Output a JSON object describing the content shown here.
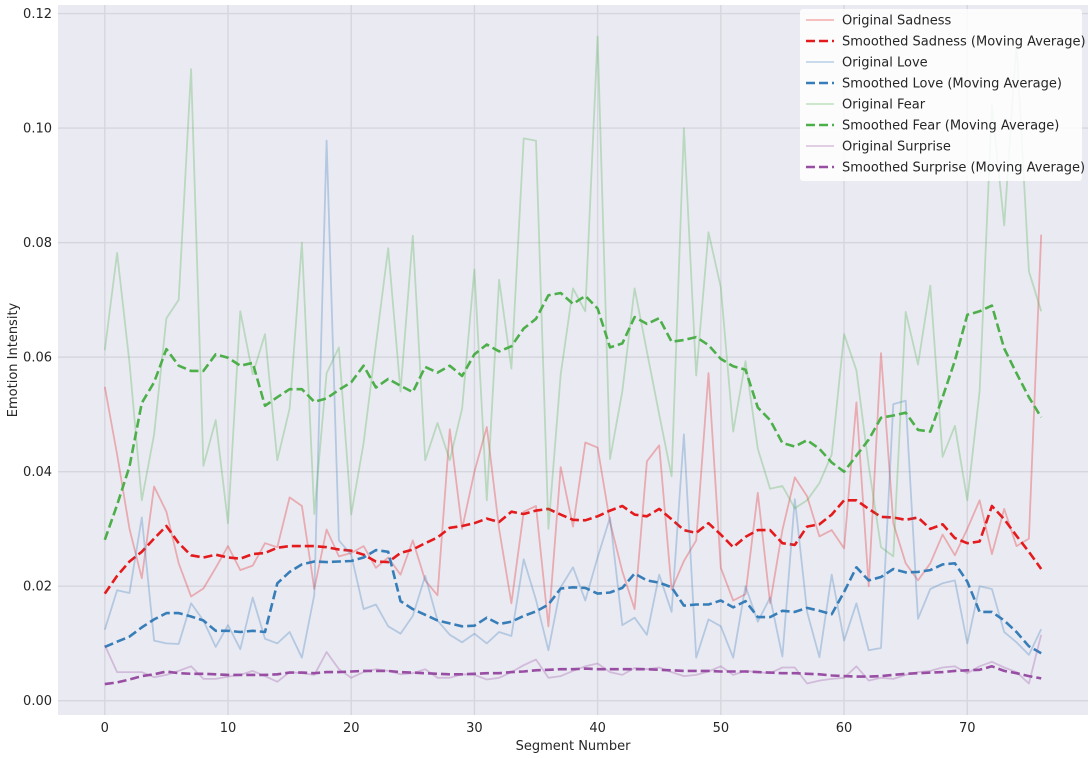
{
  "chart_data": {
    "type": "line",
    "xlabel": "Segment Number",
    "ylabel": "Emotion Intensity",
    "xlim": [
      -3.8,
      79.8
    ],
    "ylim": [
      -0.0025,
      0.1215
    ],
    "xticks": [
      0,
      10,
      20,
      30,
      40,
      50,
      60,
      70
    ],
    "yticks": [
      0.0,
      0.02,
      0.04,
      0.06,
      0.08,
      0.1,
      0.12
    ],
    "ytick_labels": [
      "0.00",
      "0.02",
      "0.04",
      "0.06",
      "0.08",
      "0.10",
      "0.12"
    ],
    "grid": true,
    "legend_position": "top-right",
    "x": [
      0,
      1,
      2,
      3,
      4,
      5,
      6,
      7,
      8,
      9,
      10,
      11,
      12,
      13,
      14,
      15,
      16,
      17,
      18,
      19,
      20,
      21,
      22,
      23,
      24,
      25,
      26,
      27,
      28,
      29,
      30,
      31,
      32,
      33,
      34,
      35,
      36,
      37,
      38,
      39,
      40,
      41,
      42,
      43,
      44,
      45,
      46,
      47,
      48,
      49,
      50,
      51,
      52,
      53,
      54,
      55,
      56,
      57,
      58,
      59,
      60,
      61,
      62,
      63,
      64,
      65,
      66,
      67,
      68,
      69,
      70,
      71,
      72,
      73,
      74,
      75,
      76
    ],
    "series": [
      {
        "name": "Original Sadness",
        "color": "#e41a1c",
        "style": "solid",
        "opacity": 0.3,
        "values": [
          0.0548,
          0.043,
          0.03,
          0.0214,
          0.0374,
          0.033,
          0.024,
          0.0182,
          0.0196,
          0.0232,
          0.027,
          0.0228,
          0.0236,
          0.0275,
          0.0268,
          0.0355,
          0.034,
          0.0195,
          0.0299,
          0.0252,
          0.0258,
          0.027,
          0.0232,
          0.025,
          0.022,
          0.028,
          0.021,
          0.0184,
          0.0474,
          0.03,
          0.04,
          0.0478,
          0.03,
          0.017,
          0.033,
          0.034,
          0.013,
          0.0408,
          0.0304,
          0.0451,
          0.0442,
          0.0312,
          0.0226,
          0.016,
          0.0418,
          0.0446,
          0.0194,
          0.0244,
          0.028,
          0.0572,
          0.0232,
          0.0175,
          0.0186,
          0.0363,
          0.017,
          0.0298,
          0.039,
          0.0357,
          0.0287,
          0.0298,
          0.0266,
          0.0521,
          0.02,
          0.0607,
          0.031,
          0.024,
          0.021,
          0.024,
          0.029,
          0.0254,
          0.03,
          0.035,
          0.0256,
          0.0335,
          0.027,
          0.0283,
          0.0814
        ]
      },
      {
        "name": "Smoothed Sadness (Moving Average)",
        "color": "#e41a1c",
        "style": "dashed",
        "opacity": 1,
        "values": [
          0.0187,
          0.0218,
          0.0243,
          0.026,
          0.0283,
          0.0305,
          0.0275,
          0.0254,
          0.025,
          0.0255,
          0.025,
          0.0248,
          0.0256,
          0.0258,
          0.0267,
          0.027,
          0.027,
          0.027,
          0.0268,
          0.0264,
          0.0262,
          0.0255,
          0.0243,
          0.0242,
          0.0258,
          0.0264,
          0.0275,
          0.0285,
          0.0302,
          0.0305,
          0.031,
          0.0318,
          0.0312,
          0.033,
          0.0326,
          0.0332,
          0.0335,
          0.0325,
          0.0316,
          0.0315,
          0.0322,
          0.0332,
          0.034,
          0.0325,
          0.0322,
          0.0335,
          0.0317,
          0.0298,
          0.0293,
          0.031,
          0.029,
          0.0268,
          0.0286,
          0.0298,
          0.0298,
          0.0275,
          0.0272,
          0.0304,
          0.0308,
          0.0325,
          0.035,
          0.035,
          0.0335,
          0.0321,
          0.032,
          0.0316,
          0.032,
          0.03,
          0.0308,
          0.0284,
          0.0275,
          0.0278,
          0.034,
          0.0317,
          0.0288,
          0.026,
          0.023
        ]
      },
      {
        "name": "Original Love",
        "color": "#377eb8",
        "style": "solid",
        "opacity": 0.3,
        "values": [
          0.0124,
          0.0193,
          0.0188,
          0.032,
          0.0105,
          0.01,
          0.0099,
          0.017,
          0.014,
          0.0094,
          0.0132,
          0.009,
          0.018,
          0.0108,
          0.01,
          0.012,
          0.0075,
          0.0185,
          0.0978,
          0.028,
          0.0255,
          0.016,
          0.0168,
          0.013,
          0.0117,
          0.0148,
          0.0218,
          0.014,
          0.0115,
          0.0102,
          0.0117,
          0.01,
          0.012,
          0.0113,
          0.0247,
          0.0176,
          0.0088,
          0.0198,
          0.0233,
          0.0175,
          0.025,
          0.032,
          0.0132,
          0.0145,
          0.0115,
          0.022,
          0.0155,
          0.0465,
          0.0075,
          0.0142,
          0.013,
          0.0075,
          0.02,
          0.0138,
          0.018,
          0.0077,
          0.0352,
          0.0155,
          0.0076,
          0.022,
          0.0105,
          0.017,
          0.0088,
          0.0092,
          0.0518,
          0.0524,
          0.0143,
          0.0195,
          0.0205,
          0.021,
          0.01,
          0.02,
          0.0195,
          0.012,
          0.0102,
          0.008,
          0.0125
        ]
      },
      {
        "name": "Smoothed Love (Moving Average)",
        "color": "#377eb8",
        "style": "dashed",
        "opacity": 1,
        "values": [
          0.0094,
          0.0103,
          0.0112,
          0.0128,
          0.0142,
          0.0153,
          0.0153,
          0.0147,
          0.014,
          0.0122,
          0.0122,
          0.012,
          0.0122,
          0.012,
          0.0205,
          0.0225,
          0.0238,
          0.0243,
          0.0242,
          0.0243,
          0.0244,
          0.025,
          0.0263,
          0.026,
          0.0174,
          0.016,
          0.015,
          0.014,
          0.0135,
          0.013,
          0.0131,
          0.0145,
          0.0134,
          0.0138,
          0.0148,
          0.0156,
          0.0168,
          0.0196,
          0.0198,
          0.0197,
          0.0187,
          0.0189,
          0.0197,
          0.0222,
          0.021,
          0.0206,
          0.0198,
          0.0166,
          0.0168,
          0.0168,
          0.0175,
          0.0163,
          0.0174,
          0.0146,
          0.0146,
          0.0157,
          0.0155,
          0.0162,
          0.0157,
          0.0151,
          0.019,
          0.0233,
          0.021,
          0.0216,
          0.023,
          0.0224,
          0.0225,
          0.0228,
          0.0238,
          0.024,
          0.0208,
          0.0155,
          0.0155,
          0.014,
          0.012,
          0.0095,
          0.0083
        ]
      },
      {
        "name": "Original Fear",
        "color": "#4daf4a",
        "style": "solid",
        "opacity": 0.3,
        "values": [
          0.0612,
          0.0782,
          0.059,
          0.035,
          0.0465,
          0.0668,
          0.07,
          0.1103,
          0.041,
          0.049,
          0.031,
          0.068,
          0.057,
          0.064,
          0.042,
          0.051,
          0.08,
          0.0326,
          0.0572,
          0.0617,
          0.0325,
          0.045,
          0.0622,
          0.079,
          0.054,
          0.0812,
          0.042,
          0.0485,
          0.042,
          0.051,
          0.0753,
          0.035,
          0.0735,
          0.058,
          0.0982,
          0.0978,
          0.03,
          0.057,
          0.072,
          0.068,
          0.116,
          0.0422,
          0.054,
          0.072,
          0.061,
          0.05,
          0.0392,
          0.1,
          0.0568,
          0.0818,
          0.0722,
          0.047,
          0.0593,
          0.044,
          0.037,
          0.0375,
          0.0336,
          0.035,
          0.038,
          0.043,
          0.064,
          0.0577,
          0.041,
          0.0268,
          0.0252,
          0.0679,
          0.0587,
          0.0725,
          0.0426,
          0.048,
          0.035,
          0.054,
          0.104,
          0.083,
          0.115,
          0.075,
          0.068
        ]
      },
      {
        "name": "Smoothed Fear (Moving Average)",
        "color": "#4daf4a",
        "style": "dashed",
        "opacity": 1,
        "values": [
          0.0281,
          0.0342,
          0.0409,
          0.052,
          0.0556,
          0.0614,
          0.0585,
          0.0576,
          0.0576,
          0.0605,
          0.0599,
          0.0585,
          0.059,
          0.0515,
          0.053,
          0.0544,
          0.0544,
          0.0522,
          0.0528,
          0.0543,
          0.0556,
          0.0585,
          0.0547,
          0.0562,
          0.055,
          0.0539,
          0.0583,
          0.0573,
          0.0585,
          0.0567,
          0.0605,
          0.0622,
          0.061,
          0.0619,
          0.065,
          0.0667,
          0.0708,
          0.0712,
          0.0693,
          0.0707,
          0.0685,
          0.0617,
          0.0624,
          0.067,
          0.0658,
          0.0668,
          0.0627,
          0.063,
          0.0635,
          0.0621,
          0.0597,
          0.0584,
          0.0578,
          0.0512,
          0.049,
          0.045,
          0.0444,
          0.0455,
          0.044,
          0.0416,
          0.04,
          0.0428,
          0.0456,
          0.0494,
          0.0498,
          0.0503,
          0.0473,
          0.047,
          0.053,
          0.0594,
          0.0674,
          0.068,
          0.069,
          0.0615,
          0.0572,
          0.053,
          0.0495
        ]
      },
      {
        "name": "Original Surprise",
        "color": "#984ea3",
        "style": "solid",
        "opacity": 0.3,
        "values": [
          0.0097,
          0.005,
          0.005,
          0.005,
          0.0041,
          0.0045,
          0.0052,
          0.006,
          0.0038,
          0.0038,
          0.0042,
          0.0045,
          0.0052,
          0.0043,
          0.0033,
          0.005,
          0.0048,
          0.0045,
          0.0085,
          0.0055,
          0.004,
          0.005,
          0.0055,
          0.0052,
          0.0046,
          0.0048,
          0.0055,
          0.004,
          0.004,
          0.0046,
          0.0045,
          0.0037,
          0.004,
          0.005,
          0.0062,
          0.0072,
          0.004,
          0.0043,
          0.0052,
          0.006,
          0.0065,
          0.005,
          0.0045,
          0.0057,
          0.0055,
          0.0058,
          0.005,
          0.0043,
          0.0045,
          0.0051,
          0.006,
          0.0045,
          0.0052,
          0.005,
          0.0048,
          0.0058,
          0.0058,
          0.003,
          0.0035,
          0.0038,
          0.004,
          0.006,
          0.0035,
          0.004,
          0.0038,
          0.0045,
          0.005,
          0.0052,
          0.0058,
          0.006,
          0.0048,
          0.006,
          0.0068,
          0.0058,
          0.005,
          0.003,
          0.0115
        ]
      },
      {
        "name": "Smoothed Surprise (Moving Average)",
        "color": "#984ea3",
        "style": "dashed",
        "opacity": 1,
        "values": [
          0.0029,
          0.0032,
          0.0037,
          0.0043,
          0.0046,
          0.0051,
          0.0048,
          0.0047,
          0.0047,
          0.0046,
          0.0045,
          0.0045,
          0.0045,
          0.0045,
          0.0046,
          0.0049,
          0.0049,
          0.0048,
          0.005,
          0.005,
          0.0051,
          0.0052,
          0.0052,
          0.0052,
          0.005,
          0.0049,
          0.0048,
          0.0047,
          0.0046,
          0.0046,
          0.0047,
          0.0048,
          0.0048,
          0.005,
          0.0051,
          0.0053,
          0.0054,
          0.0055,
          0.0055,
          0.0056,
          0.0055,
          0.0055,
          0.0055,
          0.0055,
          0.0055,
          0.0054,
          0.0053,
          0.0052,
          0.0052,
          0.0052,
          0.0051,
          0.0051,
          0.0051,
          0.005,
          0.0049,
          0.0048,
          0.0048,
          0.0047,
          0.0046,
          0.0044,
          0.0043,
          0.0042,
          0.0042,
          0.0043,
          0.0045,
          0.0047,
          0.0048,
          0.0049,
          0.005,
          0.0052,
          0.0053,
          0.0054,
          0.006,
          0.0052,
          0.0048,
          0.0043,
          0.0039
        ]
      }
    ]
  }
}
